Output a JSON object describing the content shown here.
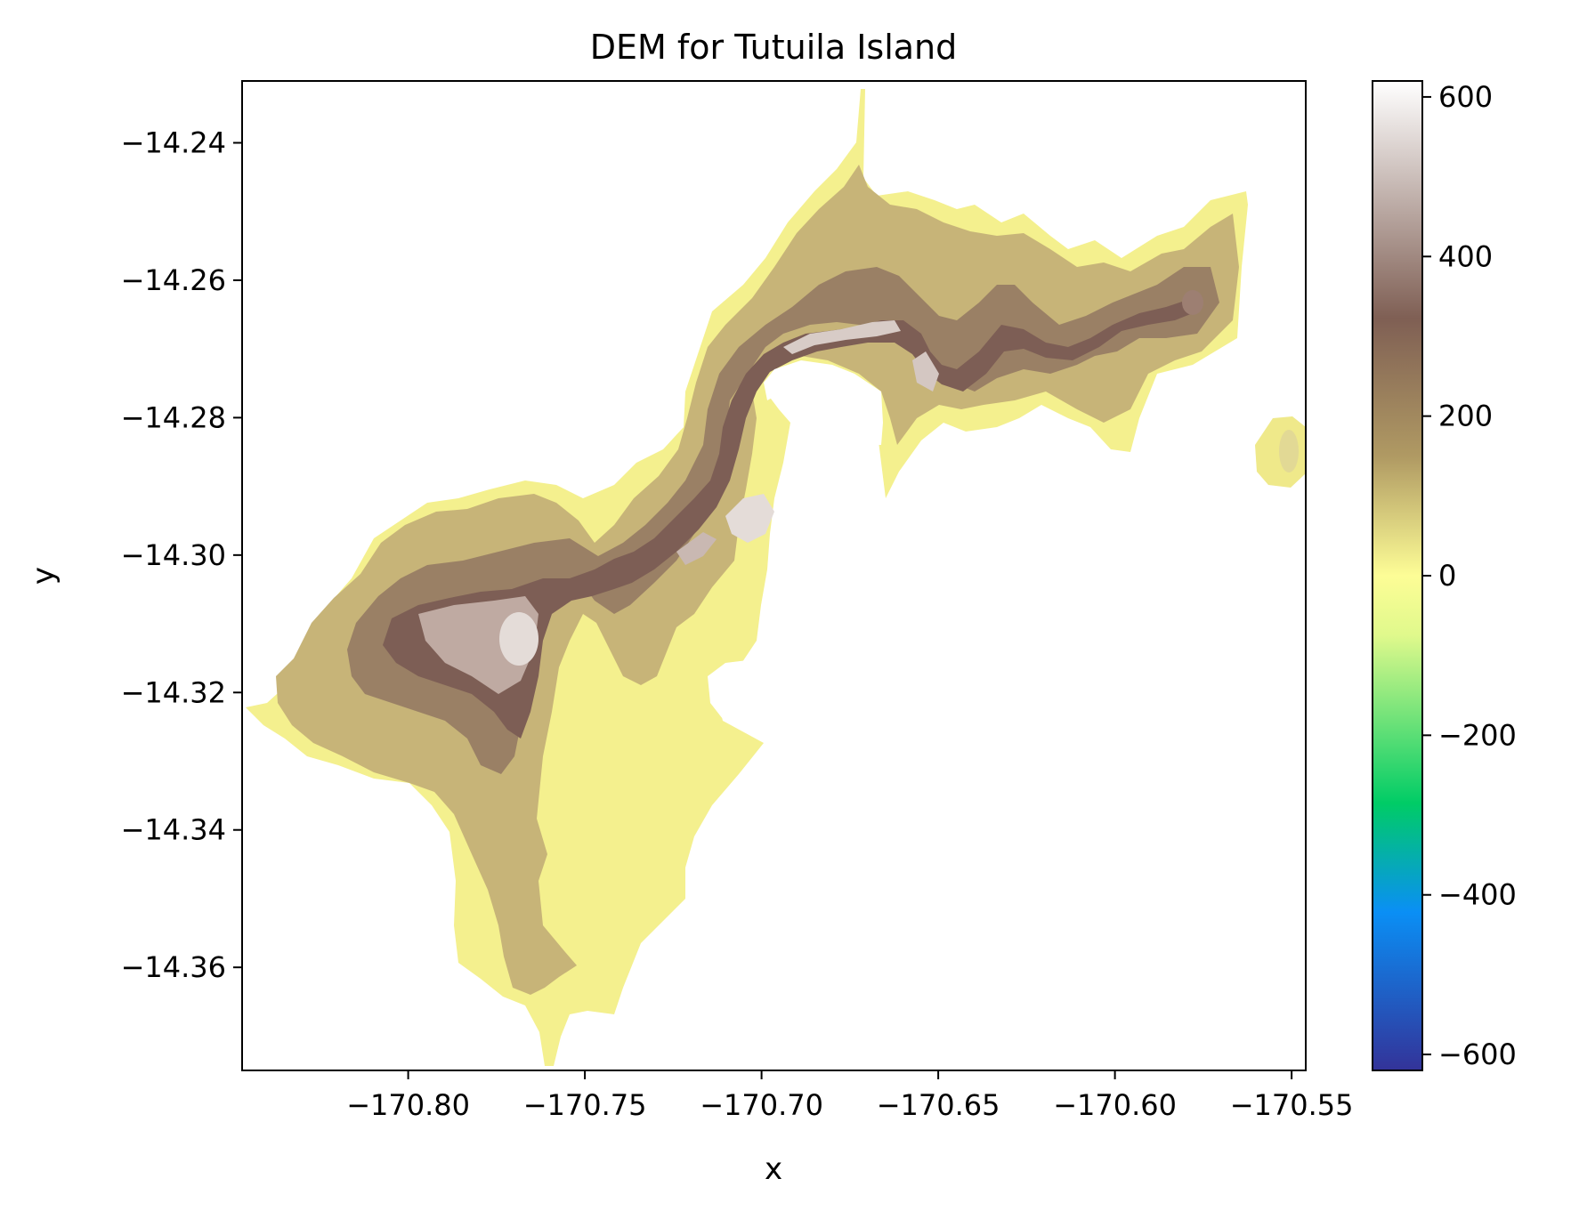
{
  "chart_data": {
    "type": "heatmap",
    "title": "DEM for Tutuila Island",
    "xlabel": "x",
    "ylabel": "y",
    "xlim": [
      -170.847,
      -170.546
    ],
    "ylim": [
      -14.375,
      -14.231
    ],
    "x_ticks": [
      -170.8,
      -170.75,
      -170.7,
      -170.65,
      -170.6,
      -170.55
    ],
    "x_tick_labels": [
      "−170.80",
      "−170.75",
      "−170.70",
      "−170.65",
      "−170.60",
      "−170.55"
    ],
    "y_ticks": [
      -14.24,
      -14.26,
      -14.28,
      -14.3,
      -14.32,
      -14.34,
      -14.36
    ],
    "y_tick_labels": [
      "−14.24",
      "−14.26",
      "−14.28",
      "−14.30",
      "−14.32",
      "−14.34",
      "−14.36"
    ],
    "colorbar": {
      "colormap": "terrain",
      "range": [
        -620,
        620
      ],
      "ticks": [
        600,
        400,
        200,
        0,
        -200,
        -400,
        -600
      ],
      "tick_labels": [
        "600",
        "400",
        "200",
        "0",
        "−200",
        "−400",
        "−600"
      ],
      "colors": {
        "min": "#333399",
        "blue": "#0a8ff5",
        "green": "#00cc66",
        "pale_green": "#e0f98c",
        "zero": "#fdfd96",
        "tan": "#b09a63",
        "brown": "#7f5f54",
        "max": "#ffffff"
      }
    },
    "elevation_colors": {
      "lowland": "#f4f08e",
      "hill": "#c7b478",
      "ridge": "#7d5e55",
      "peak": "#e4dcd8"
    },
    "grid": false
  }
}
